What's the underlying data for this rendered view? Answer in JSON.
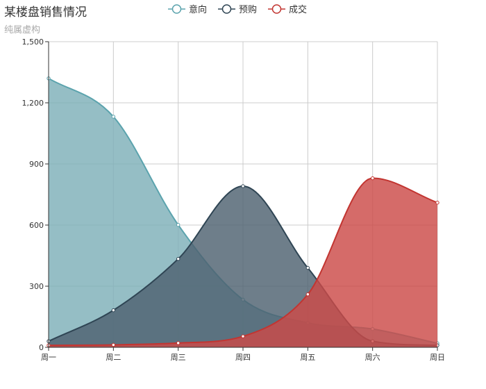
{
  "title": "某楼盘销售情况",
  "subtitle": "纯属虚构",
  "chart_data": {
    "type": "area",
    "title": "某楼盘销售情况",
    "subtitle": "纯属虚构",
    "categories": [
      "周一",
      "周二",
      "周三",
      "周四",
      "周五",
      "周六",
      "周日"
    ],
    "ylim": [
      0,
      1500
    ],
    "yticks": [
      0,
      300,
      600,
      900,
      1200,
      1500
    ],
    "ytick_labels": [
      "0",
      "300",
      "600",
      "900",
      "1,200",
      "1,500"
    ],
    "grid": true,
    "smooth": true,
    "legend_position": "top-center",
    "series": [
      {
        "name": "意向",
        "color": "#5ba3ad",
        "fill": "#7eb0b8",
        "values": [
          1320,
          1132,
          601,
          234,
          120,
          90,
          20
        ]
      },
      {
        "name": "预购",
        "color": "#2f4554",
        "fill": "#4e6270",
        "values": [
          30,
          182,
          434,
          791,
          390,
          30,
          10
        ]
      },
      {
        "name": "成交",
        "color": "#c23531",
        "fill": "#cc4b48",
        "values": [
          10,
          12,
          21,
          54,
          260,
          830,
          710
        ]
      }
    ]
  }
}
